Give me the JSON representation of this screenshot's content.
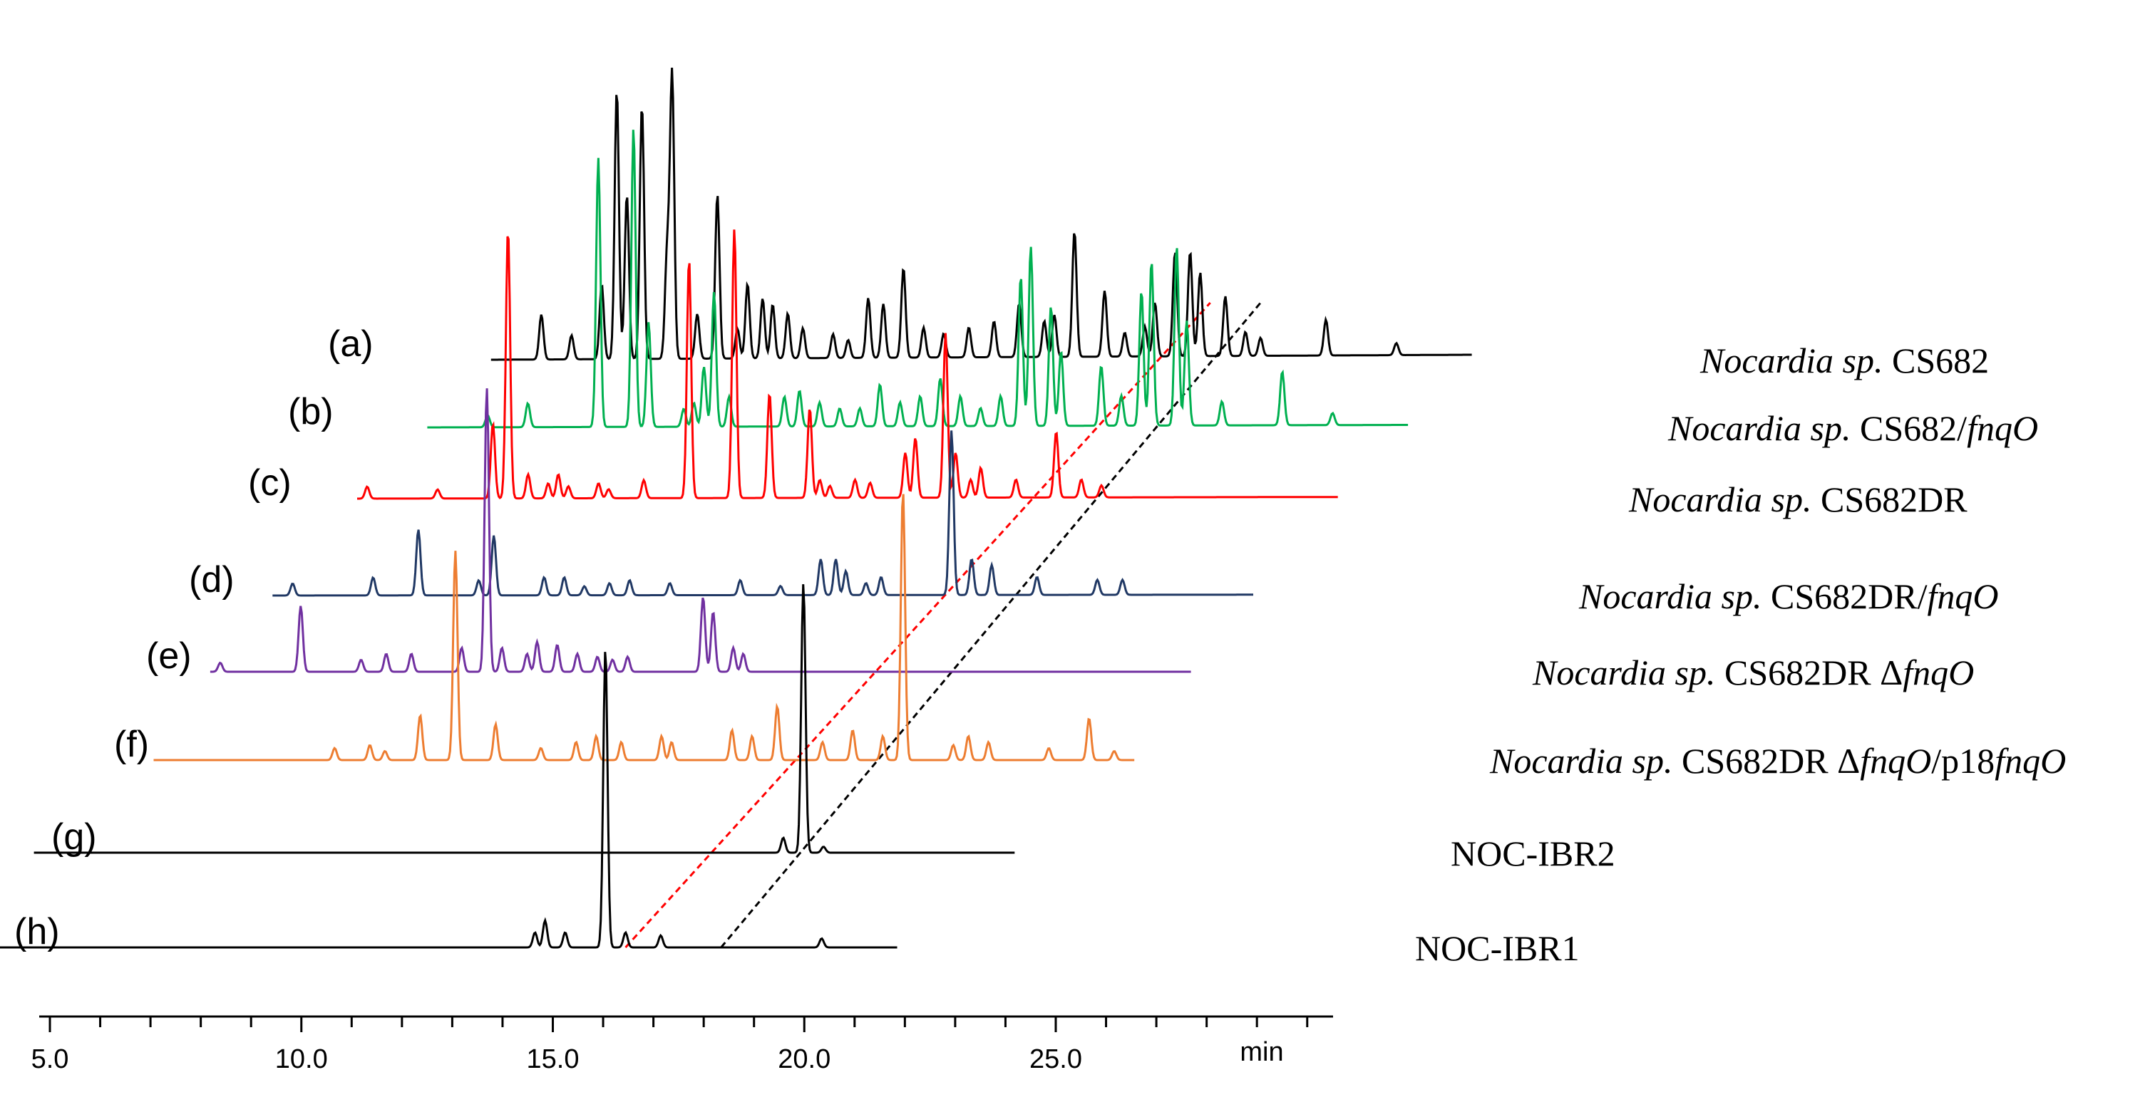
{
  "chart_data": {
    "type": "line",
    "title": "",
    "xlabel": "min",
    "ylabel": "",
    "xlim": [
      4.5,
      30.0
    ],
    "x_ticks": [
      "5.0",
      "10.0",
      "15.0",
      "20.0",
      "25.0"
    ],
    "x_tick_values": [
      5,
      10,
      15,
      20,
      25
    ],
    "minor_tick_step": 1,
    "series": [
      {
        "label": "(a)",
        "name_parts": [
          [
            "Nocardia sp.",
            true
          ],
          [
            " CS682",
            false
          ]
        ],
        "color": "#000000",
        "x_start": 12.0,
        "x_end": 31.5,
        "baseline_slope": -0.06,
        "peaks": [
          [
            13.0,
            0.15
          ],
          [
            13.6,
            0.08
          ],
          [
            14.2,
            0.25
          ],
          [
            14.5,
            0.9
          ],
          [
            14.7,
            0.55
          ],
          [
            15.0,
            0.85
          ],
          [
            15.5,
            0.35
          ],
          [
            15.6,
            0.95
          ],
          [
            16.1,
            0.15
          ],
          [
            16.5,
            0.55
          ],
          [
            16.9,
            0.1
          ],
          [
            17.1,
            0.25
          ],
          [
            17.4,
            0.2
          ],
          [
            17.6,
            0.18
          ],
          [
            17.9,
            0.15
          ],
          [
            18.2,
            0.1
          ],
          [
            18.8,
            0.08
          ],
          [
            19.1,
            0.06
          ],
          [
            19.5,
            0.2
          ],
          [
            19.8,
            0.18
          ],
          [
            20.2,
            0.3
          ],
          [
            20.6,
            0.1
          ],
          [
            21.0,
            0.08
          ],
          [
            21.5,
            0.1
          ],
          [
            22.0,
            0.12
          ],
          [
            22.5,
            0.18
          ],
          [
            23.0,
            0.12
          ],
          [
            23.2,
            0.14
          ],
          [
            23.6,
            0.42
          ],
          [
            24.2,
            0.22
          ],
          [
            24.6,
            0.08
          ],
          [
            25.0,
            0.1
          ],
          [
            25.2,
            0.18
          ],
          [
            25.6,
            0.35
          ],
          [
            25.9,
            0.35
          ],
          [
            26.1,
            0.28
          ],
          [
            26.6,
            0.2
          ],
          [
            27.0,
            0.08
          ],
          [
            27.3,
            0.06
          ],
          [
            28.6,
            0.12
          ],
          [
            30.0,
            0.04
          ]
        ]
      },
      {
        "label": "(b)",
        "name_parts": [
          [
            "Nocardia sp.",
            true
          ],
          [
            " CS682/",
            false
          ],
          [
            "fnqO",
            true
          ]
        ],
        "color": "#00b050",
        "x_start": 11.2,
        "x_end": 30.7,
        "baseline_slope": -0.03,
        "peaks": [
          [
            12.4,
            0.04
          ],
          [
            13.2,
            0.08
          ],
          [
            14.6,
            0.9
          ],
          [
            15.3,
            1.0
          ],
          [
            15.6,
            0.35
          ],
          [
            16.3,
            0.06
          ],
          [
            16.5,
            0.08
          ],
          [
            16.7,
            0.2
          ],
          [
            16.9,
            0.45
          ],
          [
            17.2,
            0.1
          ],
          [
            18.3,
            0.1
          ],
          [
            18.6,
            0.12
          ],
          [
            19.0,
            0.08
          ],
          [
            19.4,
            0.06
          ],
          [
            19.8,
            0.06
          ],
          [
            20.2,
            0.14
          ],
          [
            20.6,
            0.08
          ],
          [
            21.0,
            0.1
          ],
          [
            21.4,
            0.16
          ],
          [
            21.8,
            0.1
          ],
          [
            22.2,
            0.06
          ],
          [
            22.6,
            0.1
          ],
          [
            23.0,
            0.5
          ],
          [
            23.2,
            0.6
          ],
          [
            23.6,
            0.4
          ],
          [
            23.8,
            0.25
          ],
          [
            24.6,
            0.2
          ],
          [
            25.0,
            0.1
          ],
          [
            25.4,
            0.45
          ],
          [
            25.6,
            0.55
          ],
          [
            26.1,
            0.6
          ],
          [
            26.3,
            0.35
          ],
          [
            27.0,
            0.08
          ],
          [
            28.2,
            0.18
          ],
          [
            29.2,
            0.04
          ]
        ]
      },
      {
        "label": "(c)",
        "name_parts": [
          [
            "Nocardia sp.",
            true
          ],
          [
            " CS682DR",
            false
          ]
        ],
        "color": "#ff0000",
        "x_start": 10.4,
        "x_end": 29.9,
        "baseline_slope": -0.02,
        "peaks": [
          [
            10.6,
            0.04
          ],
          [
            12.0,
            0.03
          ],
          [
            13.1,
            0.25
          ],
          [
            13.4,
            0.9
          ],
          [
            13.8,
            0.08
          ],
          [
            14.2,
            0.05
          ],
          [
            14.4,
            0.08
          ],
          [
            14.6,
            0.04
          ],
          [
            15.2,
            0.05
          ],
          [
            15.4,
            0.03
          ],
          [
            16.1,
            0.06
          ],
          [
            17.0,
            0.8
          ],
          [
            17.9,
            0.9
          ],
          [
            18.6,
            0.35
          ],
          [
            19.4,
            0.3
          ],
          [
            19.6,
            0.06
          ],
          [
            19.8,
            0.04
          ],
          [
            20.3,
            0.06
          ],
          [
            20.6,
            0.05
          ],
          [
            21.3,
            0.15
          ],
          [
            21.5,
            0.2
          ],
          [
            22.1,
            0.55
          ],
          [
            22.3,
            0.15
          ],
          [
            22.6,
            0.06
          ],
          [
            22.8,
            0.1
          ],
          [
            23.5,
            0.06
          ],
          [
            24.3,
            0.22
          ],
          [
            24.8,
            0.06
          ],
          [
            25.2,
            0.04
          ]
        ]
      },
      {
        "label": "(d)",
        "name_parts": [
          [
            "Nocardia sp.",
            true
          ],
          [
            " CS682DR/",
            false
          ],
          [
            "fnqO",
            true
          ]
        ],
        "color": "#203864",
        "x_start": 9.2,
        "x_end": 28.7,
        "baseline_slope": -0.01,
        "peaks": [
          [
            9.6,
            0.04
          ],
          [
            11.2,
            0.06
          ],
          [
            12.1,
            0.22
          ],
          [
            13.3,
            0.05
          ],
          [
            13.6,
            0.2
          ],
          [
            14.6,
            0.06
          ],
          [
            15.0,
            0.06
          ],
          [
            15.4,
            0.03
          ],
          [
            15.9,
            0.04
          ],
          [
            16.3,
            0.05
          ],
          [
            17.1,
            0.04
          ],
          [
            18.5,
            0.05
          ],
          [
            19.3,
            0.03
          ],
          [
            20.1,
            0.12
          ],
          [
            20.4,
            0.12
          ],
          [
            20.6,
            0.08
          ],
          [
            21.0,
            0.04
          ],
          [
            21.3,
            0.06
          ],
          [
            22.7,
            0.55
          ],
          [
            23.1,
            0.12
          ],
          [
            23.5,
            0.1
          ],
          [
            24.4,
            0.06
          ],
          [
            25.6,
            0.05
          ],
          [
            26.1,
            0.05
          ]
        ]
      },
      {
        "label": "(e)",
        "name_parts": [
          [
            "Nocardia sp.",
            true
          ],
          [
            " CS682DR ",
            false
          ],
          [
            "Δ",
            false
          ],
          [
            "fnqO",
            true
          ]
        ],
        "color": "#7030a0",
        "x_start": 8.4,
        "x_end": 27.9,
        "baseline_slope": 0.0,
        "peaks": [
          [
            8.6,
            0.03
          ],
          [
            10.2,
            0.22
          ],
          [
            11.4,
            0.04
          ],
          [
            11.9,
            0.06
          ],
          [
            12.4,
            0.06
          ],
          [
            13.4,
            0.08
          ],
          [
            13.9,
            0.95
          ],
          [
            14.2,
            0.08
          ],
          [
            14.7,
            0.06
          ],
          [
            14.9,
            0.1
          ],
          [
            15.3,
            0.09
          ],
          [
            15.7,
            0.06
          ],
          [
            16.1,
            0.05
          ],
          [
            16.4,
            0.04
          ],
          [
            16.7,
            0.05
          ],
          [
            18.2,
            0.25
          ],
          [
            18.4,
            0.2
          ],
          [
            18.8,
            0.08
          ],
          [
            19.0,
            0.06
          ]
        ]
      },
      {
        "label": "(f)",
        "name_parts": [
          [
            "Nocardia sp.",
            true
          ],
          [
            " CS682DR ",
            false
          ],
          [
            "Δ",
            false
          ],
          [
            "fnqO",
            true
          ],
          [
            "/p18",
            false
          ],
          [
            "fnqO",
            true
          ]
        ],
        "color": "#ed7d31",
        "x_start": 7.7,
        "x_end": 27.2,
        "baseline_slope": 0.0,
        "peaks": [
          [
            11.3,
            0.04
          ],
          [
            12.0,
            0.05
          ],
          [
            12.3,
            0.03
          ],
          [
            13.0,
            0.15
          ],
          [
            13.7,
            0.7
          ],
          [
            14.5,
            0.12
          ],
          [
            15.4,
            0.04
          ],
          [
            16.1,
            0.06
          ],
          [
            16.5,
            0.08
          ],
          [
            17.0,
            0.06
          ],
          [
            17.8,
            0.08
          ],
          [
            18.0,
            0.06
          ],
          [
            19.2,
            0.1
          ],
          [
            19.6,
            0.08
          ],
          [
            20.1,
            0.18
          ],
          [
            21.0,
            0.06
          ],
          [
            21.6,
            0.1
          ],
          [
            22.2,
            0.08
          ],
          [
            22.6,
            0.9
          ],
          [
            23.6,
            0.05
          ],
          [
            23.9,
            0.08
          ],
          [
            24.3,
            0.06
          ],
          [
            25.5,
            0.04
          ],
          [
            26.3,
            0.14
          ],
          [
            26.8,
            0.03
          ]
        ]
      },
      {
        "label": "(g)",
        "name_parts": [
          [
            "NOC-IBR2",
            false
          ]
        ],
        "color": "#000000",
        "x_start": 6.0,
        "x_end": 25.5,
        "baseline_slope": 0.0,
        "peaks": [
          [
            20.9,
            0.05
          ],
          [
            21.3,
            0.9
          ],
          [
            21.7,
            0.02
          ]
        ]
      },
      {
        "label": "(h)",
        "name_parts": [
          [
            "NOC-IBR1",
            false
          ]
        ],
        "color": "#000000",
        "x_start": 4.5,
        "x_end": 24.0,
        "baseline_slope": 0.0,
        "peaks": [
          [
            16.8,
            0.05
          ],
          [
            17.0,
            0.09
          ],
          [
            17.4,
            0.05
          ],
          [
            18.2,
            1.0
          ],
          [
            18.6,
            0.05
          ],
          [
            19.3,
            0.04
          ],
          [
            22.5,
            0.03
          ]
        ]
      }
    ],
    "guide_lines": [
      {
        "color": "#ff0000",
        "from_series": 7,
        "from_x": 18.6,
        "to_series": 0,
        "to_x": 26.3
      },
      {
        "color": "#000000",
        "from_series": 7,
        "from_x": 20.5,
        "to_series": 0,
        "to_x": 27.3
      }
    ]
  }
}
